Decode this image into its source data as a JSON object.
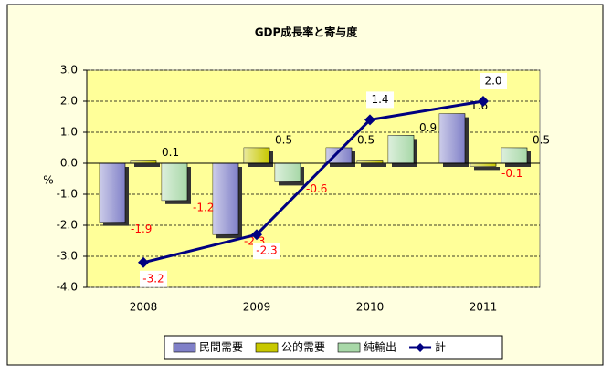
{
  "chart_data": {
    "type": "bar-line",
    "title": "GDP成長率と寄与度",
    "y_label": "%",
    "categories": [
      "2008",
      "2009",
      "2010",
      "2011"
    ],
    "series": [
      {
        "name": "民間需要",
        "type": "bar",
        "color": "#8080c8",
        "values": [
          -1.9,
          -2.3,
          0.5,
          1.6
        ],
        "value_labels": [
          "-1.9",
          "-2.3",
          "0.5",
          "1.6"
        ]
      },
      {
        "name": "公的需要",
        "type": "bar",
        "color": "#c8c800",
        "values": [
          0.1,
          0.5,
          0.1,
          -0.1
        ],
        "value_labels": [
          "0.1",
          "0.5",
          "0.1",
          "-0.1"
        ]
      },
      {
        "name": "純輸出",
        "type": "bar",
        "color": "#a8d8a8",
        "values": [
          -1.2,
          -0.6,
          0.9,
          0.5
        ],
        "value_labels": [
          "-1.2",
          "-0.6",
          "0.9",
          "0.5"
        ]
      },
      {
        "name": "計",
        "type": "line",
        "color": "#000080",
        "values": [
          -3.2,
          -2.3,
          1.4,
          2.0
        ],
        "value_labels": [
          "-3.2",
          "-2.3",
          "1.4",
          "2.0"
        ]
      }
    ],
    "ylim": [
      -4,
      3
    ],
    "yticks": [
      {
        "value": -4,
        "label": "-4.0"
      },
      {
        "value": -3,
        "label": "-3.0"
      },
      {
        "value": -2,
        "label": "-2.0"
      },
      {
        "value": -1,
        "label": "-1.0"
      },
      {
        "value": 0,
        "label": "0.0"
      },
      {
        "value": 1,
        "label": "1.0"
      },
      {
        "value": 2,
        "label": "2.0"
      },
      {
        "value": 3,
        "label": "3.0"
      }
    ],
    "grid": true,
    "legend": "bottom"
  }
}
